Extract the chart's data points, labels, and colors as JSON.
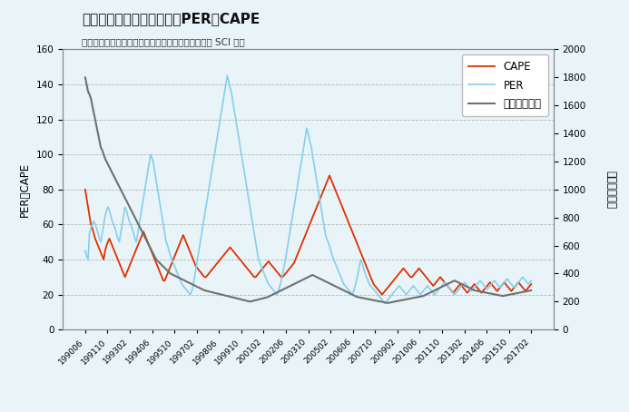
{
  "title": "東証一部の単純株価平均、PERとCAPE",
  "subtitle": "出典：東証、東証統計年報、証券統計年報より浜町 SCI 作成",
  "bg_color": "#e8f4f8",
  "left_ylabel": "PER・CAPE",
  "right_ylabel": "単純株価平均",
  "left_ylim": [
    0,
    160
  ],
  "right_ylim": [
    0,
    2000
  ],
  "left_yticks": [
    0,
    20,
    40,
    60,
    80,
    100,
    120,
    140,
    160
  ],
  "right_yticks": [
    0,
    200,
    400,
    600,
    800,
    1000,
    1200,
    1400,
    1600,
    1800,
    2000
  ],
  "cape_color": "#e03000",
  "per_color": "#87ceeb",
  "price_color": "#707070",
  "legend_labels": [
    "CAPE",
    "PER",
    "単純株価平均"
  ],
  "xtick_labels": [
    "199006",
    "199110",
    "199302",
    "199406",
    "199510",
    "199702",
    "199806",
    "199910",
    "200102",
    "200206",
    "200310",
    "200502",
    "200606",
    "200710",
    "200902",
    "201006",
    "201110",
    "201302",
    "201406",
    "201510",
    "201702"
  ],
  "cape": [
    80,
    75,
    70,
    65,
    60,
    58,
    55,
    52,
    50,
    48,
    46,
    44,
    42,
    40,
    45,
    48,
    50,
    52,
    50,
    48,
    46,
    44,
    42,
    40,
    38,
    36,
    34,
    32,
    30,
    32,
    34,
    36,
    38,
    40,
    42,
    44,
    46,
    48,
    50,
    52,
    54,
    56,
    54,
    52,
    50,
    48,
    46,
    44,
    42,
    40,
    38,
    36,
    34,
    32,
    30,
    28,
    28,
    30,
    32,
    34,
    36,
    38,
    40,
    42,
    44,
    46,
    48,
    50,
    52,
    54,
    52,
    50,
    48,
    46,
    44,
    42,
    40,
    38,
    36,
    35,
    34,
    33,
    32,
    31,
    30,
    30,
    31,
    32,
    33,
    34,
    35,
    36,
    37,
    38,
    39,
    40,
    41,
    42,
    43,
    44,
    45,
    46,
    47,
    46,
    45,
    44,
    43,
    42,
    41,
    40,
    39,
    38,
    37,
    36,
    35,
    34,
    33,
    32,
    31,
    30,
    30,
    31,
    32,
    33,
    34,
    35,
    36,
    37,
    38,
    39,
    38,
    37,
    36,
    35,
    34,
    33,
    32,
    31,
    30,
    30,
    31,
    32,
    33,
    34,
    35,
    36,
    37,
    38,
    40,
    42,
    44,
    46,
    48,
    50,
    52,
    54,
    56,
    58,
    60,
    62,
    64,
    66,
    68,
    70,
    72,
    74,
    76,
    78,
    80,
    82,
    84,
    86,
    88,
    86,
    84,
    82,
    80,
    78,
    76,
    74,
    72,
    70,
    68,
    66,
    64,
    62,
    60,
    58,
    56,
    54,
    52,
    50,
    48,
    46,
    44,
    42,
    40,
    38,
    36,
    34,
    32,
    30,
    28,
    26,
    25,
    24,
    23,
    22,
    21,
    20,
    21,
    22,
    23,
    24,
    25,
    26,
    27,
    28,
    29,
    30,
    31,
    32,
    33,
    34,
    35,
    34,
    33,
    32,
    31,
    30,
    30,
    31,
    32,
    33,
    34,
    35,
    34,
    33,
    32,
    31,
    30,
    29,
    28,
    27,
    26,
    25,
    26,
    27,
    28,
    29,
    30,
    29,
    28,
    27,
    26,
    25,
    24,
    23,
    22,
    21,
    22,
    23,
    24,
    25,
    26,
    25,
    24,
    23,
    22,
    21,
    22,
    23,
    24,
    25,
    26,
    25,
    24,
    23,
    22,
    21,
    22,
    23,
    24,
    25,
    26,
    27,
    26,
    25,
    24,
    23,
    22,
    23,
    24,
    25,
    26,
    27,
    26,
    25,
    24,
    23,
    22,
    23,
    24,
    25,
    26,
    27,
    26,
    25,
    24,
    23,
    22,
    23,
    24,
    25,
    26,
    27,
    26,
    25,
    24,
    23,
    22,
    21,
    22,
    23,
    24,
    25
  ],
  "per": [
    45,
    42,
    40,
    55,
    58,
    60,
    62,
    60,
    58,
    55,
    52,
    50,
    55,
    60,
    65,
    68,
    70,
    68,
    65,
    62,
    60,
    58,
    55,
    52,
    50,
    55,
    60,
    65,
    70,
    68,
    65,
    62,
    60,
    58,
    55,
    52,
    50,
    55,
    60,
    65,
    70,
    75,
    80,
    85,
    90,
    95,
    100,
    98,
    95,
    90,
    85,
    80,
    75,
    70,
    65,
    60,
    55,
    50,
    48,
    45,
    42,
    40,
    38,
    36,
    34,
    32,
    30,
    28,
    26,
    25,
    24,
    23,
    22,
    21,
    20,
    22,
    25,
    30,
    35,
    40,
    45,
    50,
    55,
    60,
    65,
    70,
    75,
    80,
    85,
    90,
    95,
    100,
    105,
    110,
    115,
    120,
    125,
    130,
    135,
    140,
    145,
    142,
    138,
    135,
    130,
    125,
    120,
    115,
    110,
    105,
    100,
    95,
    90,
    85,
    80,
    75,
    70,
    65,
    60,
    55,
    50,
    45,
    40,
    38,
    36,
    34,
    32,
    30,
    28,
    26,
    25,
    24,
    23,
    22,
    21,
    20,
    22,
    25,
    28,
    32,
    36,
    40,
    45,
    50,
    55,
    60,
    65,
    70,
    75,
    80,
    85,
    90,
    95,
    100,
    105,
    110,
    115,
    112,
    108,
    105,
    100,
    95,
    90,
    85,
    80,
    75,
    70,
    65,
    60,
    55,
    52,
    50,
    48,
    45,
    42,
    40,
    38,
    36,
    34,
    32,
    30,
    28,
    26,
    25,
    24,
    23,
    22,
    21,
    20,
    22,
    25,
    28,
    32,
    36,
    40,
    38,
    35,
    32,
    30,
    28,
    26,
    25,
    24,
    23,
    22,
    21,
    20,
    19,
    18,
    17,
    16,
    15,
    16,
    17,
    18,
    19,
    20,
    21,
    22,
    23,
    24,
    25,
    24,
    23,
    22,
    21,
    20,
    21,
    22,
    23,
    24,
    25,
    24,
    23,
    22,
    21,
    20,
    21,
    22,
    23,
    24,
    25,
    24,
    23,
    22,
    21,
    20,
    21,
    22,
    23,
    24,
    25,
    26,
    27,
    26,
    25,
    24,
    23,
    22,
    21,
    20,
    21,
    22,
    23,
    24,
    25,
    26,
    27,
    26,
    25,
    24,
    23,
    22,
    23,
    24,
    25,
    26,
    27,
    28,
    27,
    26,
    25,
    24,
    23,
    24,
    25,
    26,
    27,
    28,
    27,
    26,
    25,
    24,
    25,
    26,
    27,
    28,
    29,
    28,
    27,
    26,
    25,
    24,
    25,
    26,
    27,
    28,
    29,
    30,
    29,
    28,
    27,
    26,
    27,
    28,
    29,
    30,
    29,
    28,
    27,
    26,
    27,
    28,
    29,
    30,
    29
  ],
  "price": [
    1800,
    1750,
    1700,
    1680,
    1650,
    1600,
    1550,
    1500,
    1450,
    1400,
    1350,
    1300,
    1280,
    1250,
    1220,
    1200,
    1180,
    1160,
    1140,
    1120,
    1100,
    1080,
    1060,
    1040,
    1020,
    1000,
    980,
    960,
    940,
    920,
    900,
    880,
    860,
    840,
    820,
    800,
    780,
    760,
    740,
    720,
    700,
    680,
    660,
    640,
    620,
    600,
    580,
    560,
    540,
    520,
    500,
    490,
    480,
    470,
    460,
    450,
    440,
    430,
    420,
    410,
    400,
    395,
    390,
    385,
    380,
    375,
    370,
    365,
    360,
    355,
    350,
    345,
    340,
    335,
    330,
    325,
    320,
    315,
    310,
    305,
    300,
    295,
    290,
    285,
    280,
    278,
    275,
    272,
    270,
    268,
    265,
    262,
    260,
    258,
    255,
    252,
    250,
    248,
    245,
    242,
    240,
    238,
    235,
    232,
    230,
    228,
    225,
    222,
    220,
    218,
    215,
    212,
    210,
    208,
    205,
    202,
    200,
    202,
    205,
    208,
    210,
    212,
    215,
    218,
    220,
    222,
    225,
    228,
    230,
    235,
    240,
    245,
    250,
    255,
    260,
    265,
    270,
    275,
    280,
    285,
    290,
    295,
    300,
    305,
    310,
    315,
    320,
    325,
    330,
    335,
    340,
    345,
    350,
    355,
    360,
    365,
    370,
    375,
    380,
    385,
    390,
    385,
    380,
    375,
    370,
    365,
    360,
    355,
    350,
    345,
    340,
    335,
    330,
    325,
    320,
    315,
    310,
    305,
    300,
    295,
    290,
    285,
    280,
    275,
    270,
    265,
    260,
    255,
    250,
    245,
    240,
    235,
    232,
    230,
    228,
    226,
    224,
    222,
    220,
    218,
    216,
    214,
    212,
    210,
    208,
    206,
    204,
    202,
    200,
    198,
    196,
    194,
    192,
    190,
    192,
    194,
    196,
    198,
    200,
    202,
    204,
    206,
    208,
    210,
    212,
    214,
    216,
    218,
    220,
    222,
    224,
    226,
    228,
    230,
    232,
    234,
    236,
    238,
    240,
    245,
    250,
    255,
    260,
    265,
    270,
    275,
    280,
    285,
    290,
    295,
    300,
    305,
    310,
    315,
    320,
    325,
    330,
    335,
    340,
    345,
    350,
    345,
    340,
    335,
    330,
    325,
    320,
    315,
    310,
    305,
    300,
    295,
    290,
    285,
    280,
    278,
    276,
    274,
    272,
    270,
    268,
    266,
    264,
    262,
    260,
    258,
    256,
    254,
    252,
    250,
    248,
    246,
    244,
    242,
    240,
    242,
    244,
    246,
    248,
    250,
    252,
    254,
    256,
    258,
    260,
    262,
    264,
    266,
    268,
    270,
    272,
    274,
    276,
    278,
    280
  ]
}
